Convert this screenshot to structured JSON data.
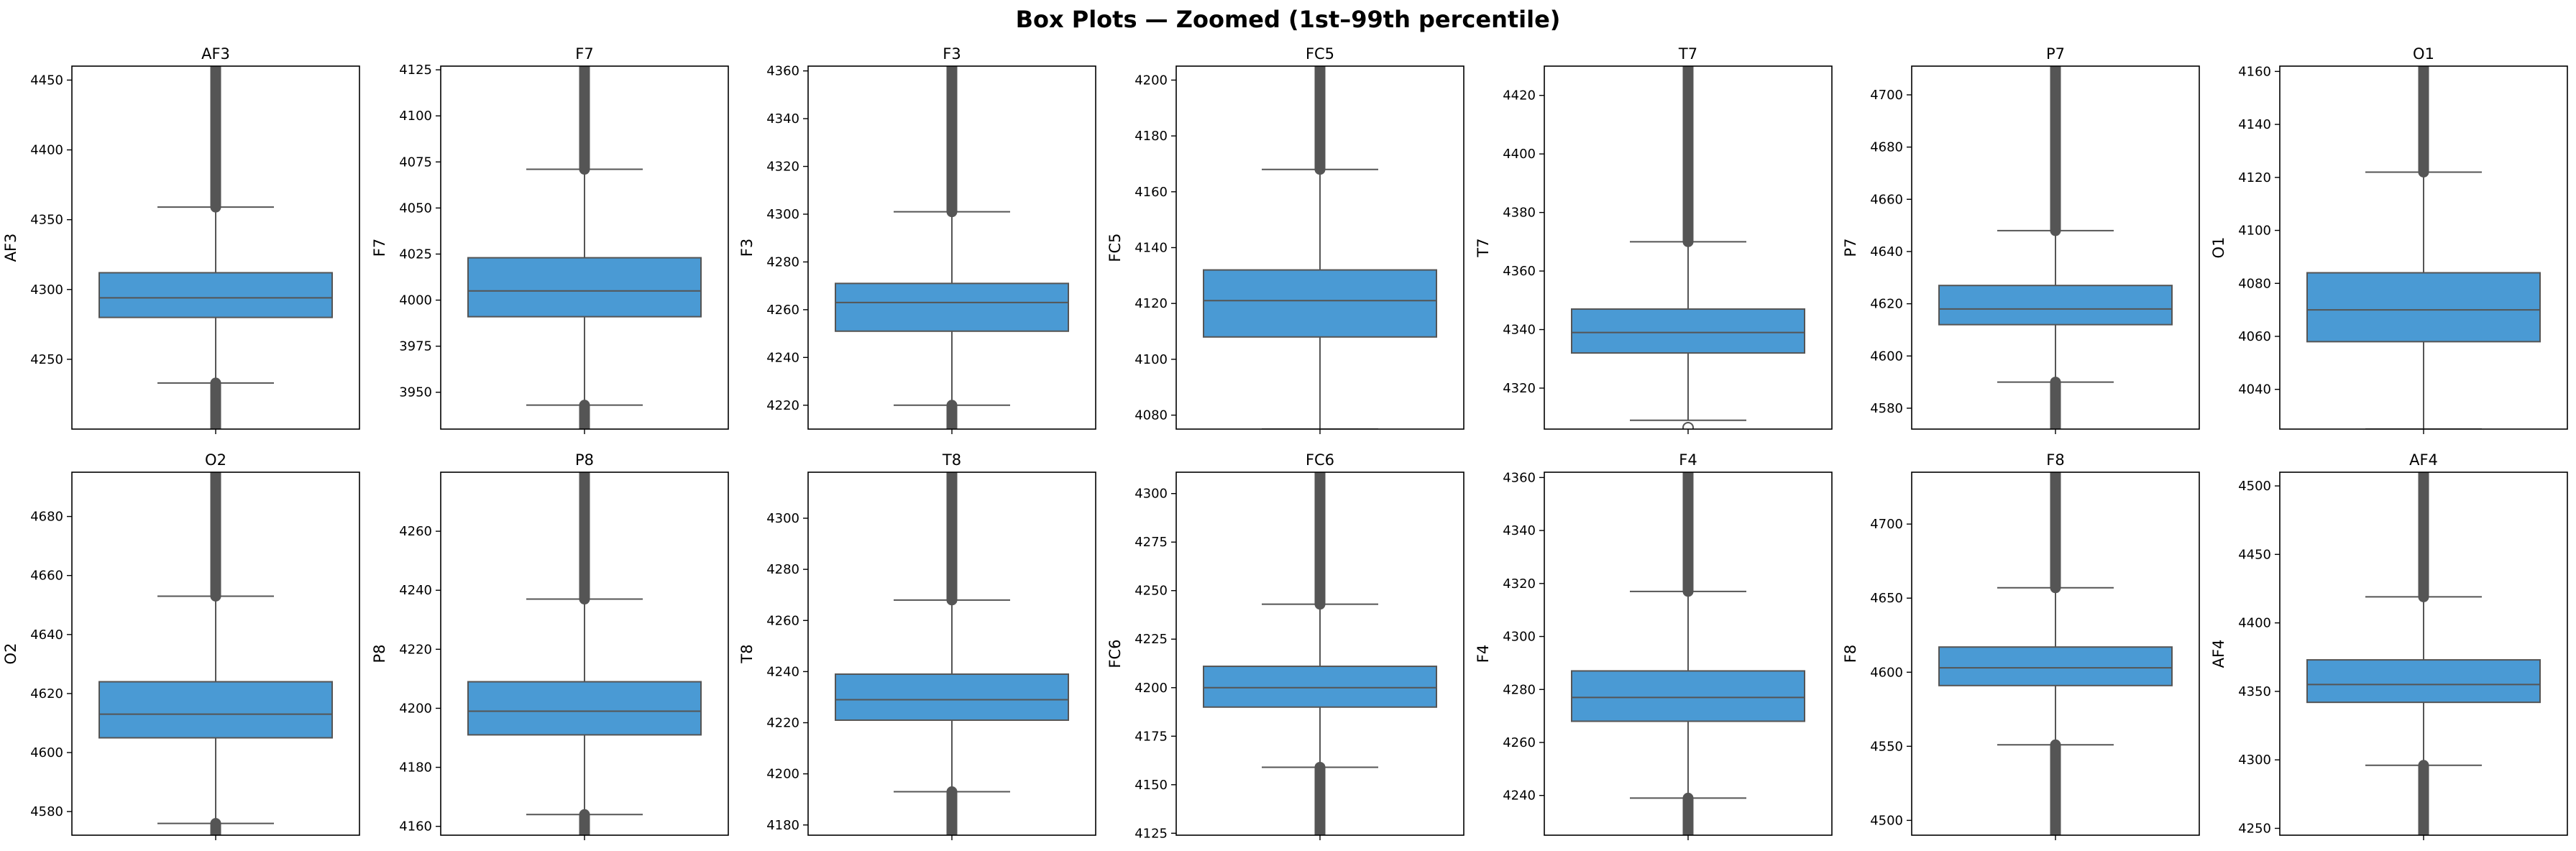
{
  "figure": {
    "title": "Box Plots — Zoomed (1st–99th percentile)"
  },
  "colors": {
    "box_fill": "#4a9ad4",
    "line": "#555555",
    "axes": "#000000"
  },
  "chart_data": [
    {
      "type": "box",
      "title": "AF3",
      "ylabel": "AF3",
      "ylim": [
        4200,
        4460
      ],
      "yticks": [
        4250,
        4300,
        4350,
        4400,
        4450
      ],
      "box": {
        "q1": 4280,
        "median": 4294,
        "q3": 4312,
        "whisker_low": 4233,
        "whisker_high": 4359
      },
      "outliers_low": [
        4200,
        4233
      ],
      "outliers_high": [
        4359,
        4460
      ]
    },
    {
      "type": "box",
      "title": "F7",
      "ylabel": "F7",
      "ylim": [
        3930,
        4127
      ],
      "yticks": [
        3950,
        3975,
        4000,
        4025,
        4050,
        4075,
        4100,
        4125
      ],
      "box": {
        "q1": 3991,
        "median": 4005,
        "q3": 4023,
        "whisker_low": 3943,
        "whisker_high": 4071
      },
      "outliers_low": [
        3930,
        3943
      ],
      "outliers_high": [
        4071,
        4127
      ]
    },
    {
      "type": "box",
      "title": "F3",
      "ylabel": "F3",
      "ylim": [
        4210,
        4362
      ],
      "yticks": [
        4220,
        4240,
        4260,
        4280,
        4300,
        4320,
        4340,
        4360
      ],
      "box": {
        "q1": 4251,
        "median": 4263,
        "q3": 4271,
        "whisker_low": 4220,
        "whisker_high": 4301
      },
      "outliers_low": [
        4210,
        4220
      ],
      "outliers_high": [
        4301,
        4362
      ]
    },
    {
      "type": "box",
      "title": "FC5",
      "ylabel": "FC5",
      "ylim": [
        4075,
        4205
      ],
      "yticks": [
        4080,
        4100,
        4120,
        4140,
        4160,
        4180,
        4200
      ],
      "box": {
        "q1": 4108,
        "median": 4121,
        "q3": 4132,
        "whisker_low": 4075,
        "whisker_high": 4168
      },
      "outliers_low": [],
      "outliers_high": [
        4168,
        4205
      ]
    },
    {
      "type": "box",
      "title": "T7",
      "ylabel": "T7",
      "ylim": [
        4306,
        4430
      ],
      "yticks": [
        4320,
        4340,
        4360,
        4380,
        4400,
        4420
      ],
      "box": {
        "q1": 4332,
        "median": 4339,
        "q3": 4347,
        "whisker_low": 4309,
        "whisker_high": 4370
      },
      "outliers_low": [
        4306.5
      ],
      "outliers_high": [
        4370,
        4430
      ]
    },
    {
      "type": "box",
      "title": "P7",
      "ylabel": "P7",
      "ylim": [
        4572,
        4711
      ],
      "yticks": [
        4580,
        4600,
        4620,
        4640,
        4660,
        4680,
        4700
      ],
      "box": {
        "q1": 4612,
        "median": 4618,
        "q3": 4627,
        "whisker_low": 4590,
        "whisker_high": 4648
      },
      "outliers_low": [
        4572,
        4590
      ],
      "outliers_high": [
        4648,
        4711
      ]
    },
    {
      "type": "box",
      "title": "O1",
      "ylabel": "O1",
      "ylim": [
        4025,
        4162
      ],
      "yticks": [
        4040,
        4060,
        4080,
        4100,
        4120,
        4140,
        4160
      ],
      "box": {
        "q1": 4058,
        "median": 4070,
        "q3": 4084,
        "whisker_low": 4025,
        "whisker_high": 4122
      },
      "outliers_low": [],
      "outliers_high": [
        4122,
        4162
      ]
    },
    {
      "type": "box",
      "title": "O2",
      "ylabel": "O2",
      "ylim": [
        4572,
        4695
      ],
      "yticks": [
        4580,
        4600,
        4620,
        4640,
        4660,
        4680
      ],
      "box": {
        "q1": 4605,
        "median": 4613,
        "q3": 4624,
        "whisker_low": 4576,
        "whisker_high": 4653
      },
      "outliers_low": [
        4572,
        4576
      ],
      "outliers_high": [
        4653,
        4695
      ]
    },
    {
      "type": "box",
      "title": "P8",
      "ylabel": "P8",
      "ylim": [
        4157,
        4280
      ],
      "yticks": [
        4160,
        4180,
        4200,
        4220,
        4240,
        4260
      ],
      "box": {
        "q1": 4191,
        "median": 4199,
        "q3": 4209,
        "whisker_low": 4164,
        "whisker_high": 4237
      },
      "outliers_low": [
        4157,
        4164
      ],
      "outliers_high": [
        4237,
        4280
      ]
    },
    {
      "type": "box",
      "title": "T8",
      "ylabel": "T8",
      "ylim": [
        4176,
        4318
      ],
      "yticks": [
        4180,
        4200,
        4220,
        4240,
        4260,
        4280,
        4300
      ],
      "box": {
        "q1": 4221,
        "median": 4229,
        "q3": 4239,
        "whisker_low": 4193,
        "whisker_high": 4268
      },
      "outliers_low": [
        4176,
        4193
      ],
      "outliers_high": [
        4268,
        4318
      ]
    },
    {
      "type": "box",
      "title": "FC6",
      "ylabel": "FC6",
      "ylim": [
        4124,
        4311
      ],
      "yticks": [
        4125,
        4150,
        4175,
        4200,
        4225,
        4250,
        4275,
        4300
      ],
      "box": {
        "q1": 4190,
        "median": 4200,
        "q3": 4211,
        "whisker_low": 4159,
        "whisker_high": 4243
      },
      "outliers_low": [
        4124,
        4159
      ],
      "outliers_high": [
        4243,
        4311
      ]
    },
    {
      "type": "box",
      "title": "F4",
      "ylabel": "F4",
      "ylim": [
        4225,
        4362
      ],
      "yticks": [
        4240,
        4260,
        4280,
        4300,
        4320,
        4340,
        4360
      ],
      "box": {
        "q1": 4268,
        "median": 4277,
        "q3": 4287,
        "whisker_low": 4239,
        "whisker_high": 4317
      },
      "outliers_low": [
        4225,
        4239
      ],
      "outliers_high": [
        4317,
        4362
      ]
    },
    {
      "type": "box",
      "title": "F8",
      "ylabel": "F8",
      "ylim": [
        4490,
        4735
      ],
      "yticks": [
        4500,
        4550,
        4600,
        4650,
        4700
      ],
      "box": {
        "q1": 4591,
        "median": 4603,
        "q3": 4617,
        "whisker_low": 4551,
        "whisker_high": 4657
      },
      "outliers_low": [
        4490,
        4551
      ],
      "outliers_high": [
        4657,
        4735
      ]
    },
    {
      "type": "box",
      "title": "AF4",
      "ylabel": "AF4",
      "ylim": [
        4245,
        4510
      ],
      "yticks": [
        4250,
        4300,
        4350,
        4400,
        4450,
        4500
      ],
      "box": {
        "q1": 4342,
        "median": 4355,
        "q3": 4373,
        "whisker_low": 4296,
        "whisker_high": 4419
      },
      "outliers_low": [
        4245,
        4296
      ],
      "outliers_high": [
        4419,
        4510
      ]
    }
  ]
}
